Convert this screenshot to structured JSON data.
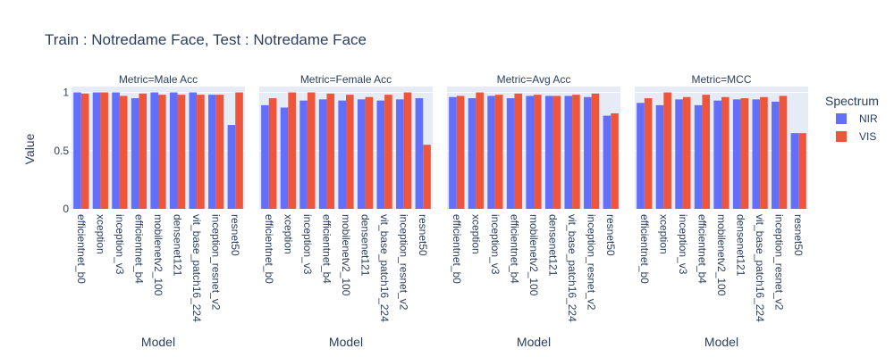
{
  "chart_data": {
    "type": "bar",
    "title": "Train : Notredame Face, Test : Notredame Face",
    "xlabel": "Model",
    "ylabel": "Value",
    "ylim": [
      0,
      1.05
    ],
    "yticks": [
      0,
      0.5,
      1
    ],
    "ytick_labels": [
      "0",
      "0.5",
      "1"
    ],
    "grid": true,
    "legend_position": "right",
    "legend_title": "Spectrum",
    "categories": [
      "efficientnet_b0",
      "xception",
      "inception_v3",
      "efficientnet_b4",
      "mobilenetv2_100",
      "densenet121",
      "vit_base_patch16_224",
      "inception_resnet_v2",
      "resnet50"
    ],
    "colors": {
      "NIR": "#636efa",
      "VIS": "#ef553b",
      "plot_bg": "#e5ecf6",
      "grid": "#ffffff",
      "text": "#2a3f5f"
    },
    "facets": [
      {
        "label": "Metric=Male Acc",
        "series": [
          {
            "name": "NIR",
            "values": [
              1.0,
              1.0,
              1.0,
              0.95,
              1.0,
              1.0,
              1.0,
              0.98,
              0.72
            ]
          },
          {
            "name": "VIS",
            "values": [
              0.99,
              1.0,
              0.97,
              0.99,
              0.98,
              0.98,
              0.98,
              0.98,
              1.0
            ]
          }
        ]
      },
      {
        "label": "Metric=Female Acc",
        "series": [
          {
            "name": "NIR",
            "values": [
              0.89,
              0.87,
              0.93,
              0.94,
              0.93,
              0.94,
              0.93,
              0.94,
              0.95
            ]
          },
          {
            "name": "VIS",
            "values": [
              0.95,
              1.0,
              1.0,
              0.99,
              0.98,
              0.96,
              0.98,
              1.0,
              0.55
            ]
          }
        ]
      },
      {
        "label": "Metric=Avg Acc",
        "series": [
          {
            "name": "NIR",
            "values": [
              0.96,
              0.95,
              0.97,
              0.95,
              0.97,
              0.97,
              0.97,
              0.96,
              0.8
            ]
          },
          {
            "name": "VIS",
            "values": [
              0.97,
              1.0,
              0.98,
              0.99,
              0.98,
              0.97,
              0.98,
              0.99,
              0.82
            ]
          }
        ]
      },
      {
        "label": "Metric=MCC",
        "series": [
          {
            "name": "NIR",
            "values": [
              0.91,
              0.89,
              0.94,
              0.89,
              0.93,
              0.94,
              0.94,
              0.92,
              0.65
            ]
          },
          {
            "name": "VIS",
            "values": [
              0.95,
              1.0,
              0.96,
              0.98,
              0.96,
              0.95,
              0.96,
              0.97,
              0.65
            ]
          }
        ]
      }
    ]
  }
}
